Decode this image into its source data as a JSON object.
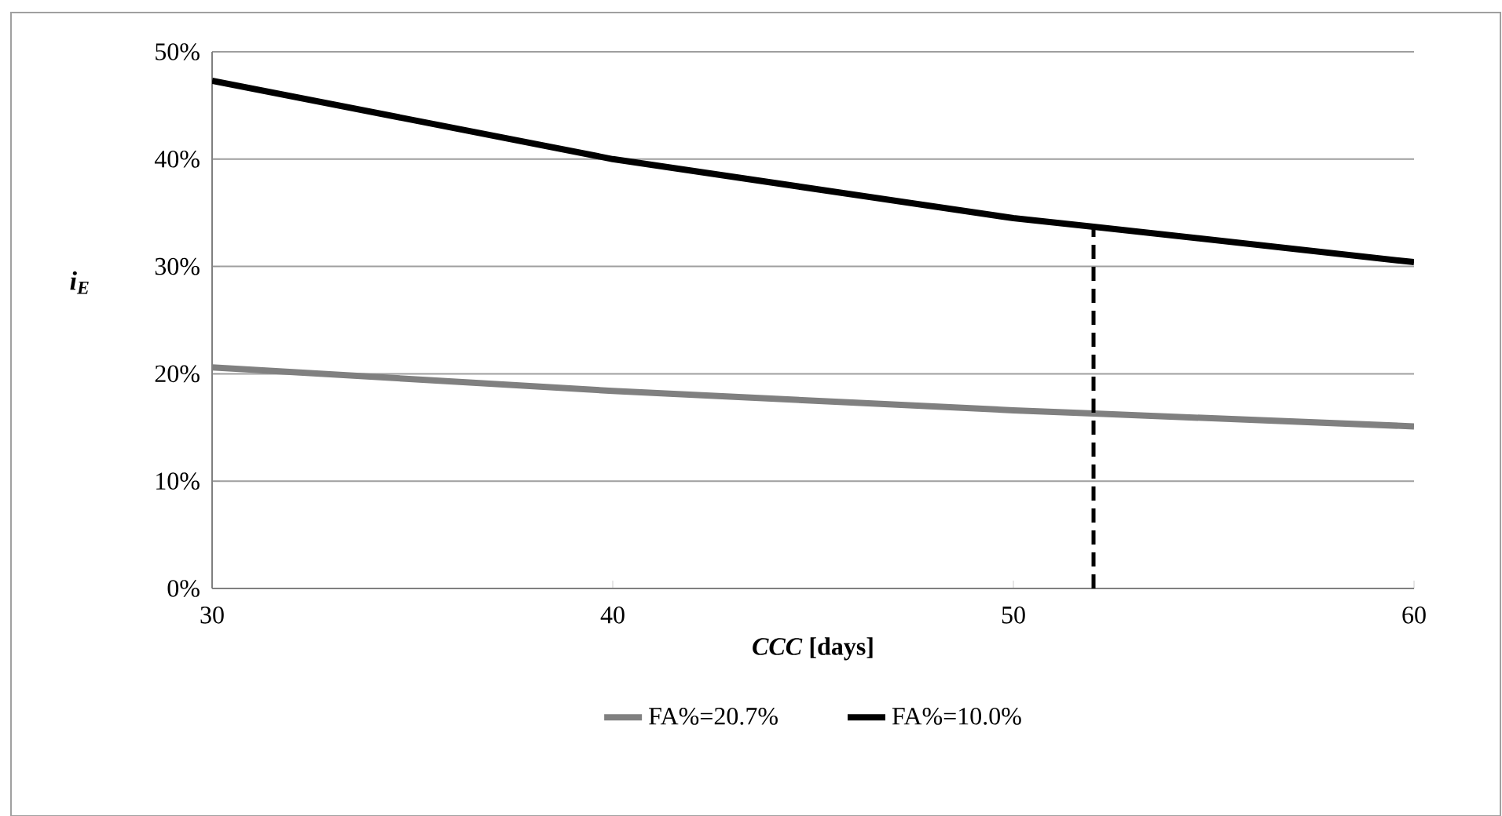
{
  "chart_data": {
    "type": "line",
    "xlabel": "*CCC* [days]",
    "ylabel": "i$_{E}$",
    "x": [
      30,
      40,
      50,
      52,
      60
    ],
    "series": [
      {
        "name": "FA%=20.7%",
        "color": "#808080",
        "values": [
          20.6,
          18.4,
          16.6,
          16.3,
          15.1
        ]
      },
      {
        "name": "FA%=10.0%",
        "color": "#000000",
        "values": [
          47.3,
          40.0,
          34.5,
          33.7,
          30.4
        ]
      },
      {
        "color": "#000000",
        "x": [
          52,
          52
        ],
        "values": [
          0,
          33.7
        ],
        "line_style": "dashed"
      }
    ],
    "xlim": [
      30,
      60
    ],
    "xticks": [
      30,
      40,
      50,
      60
    ],
    "ylim": [
      0,
      50
    ],
    "yticks": [
      {
        "value": 0,
        "label": "0%"
      },
      {
        "value": 10,
        "label": "10%"
      },
      {
        "value": 20,
        "label": "20%"
      },
      {
        "value": 30,
        "label": "30%"
      },
      {
        "value": 40,
        "label": "40%"
      },
      {
        "value": 50,
        "label": "50%"
      }
    ],
    "grid": "y",
    "legend": "bottom",
    "marker": "none",
    "line_style": "solid"
  }
}
